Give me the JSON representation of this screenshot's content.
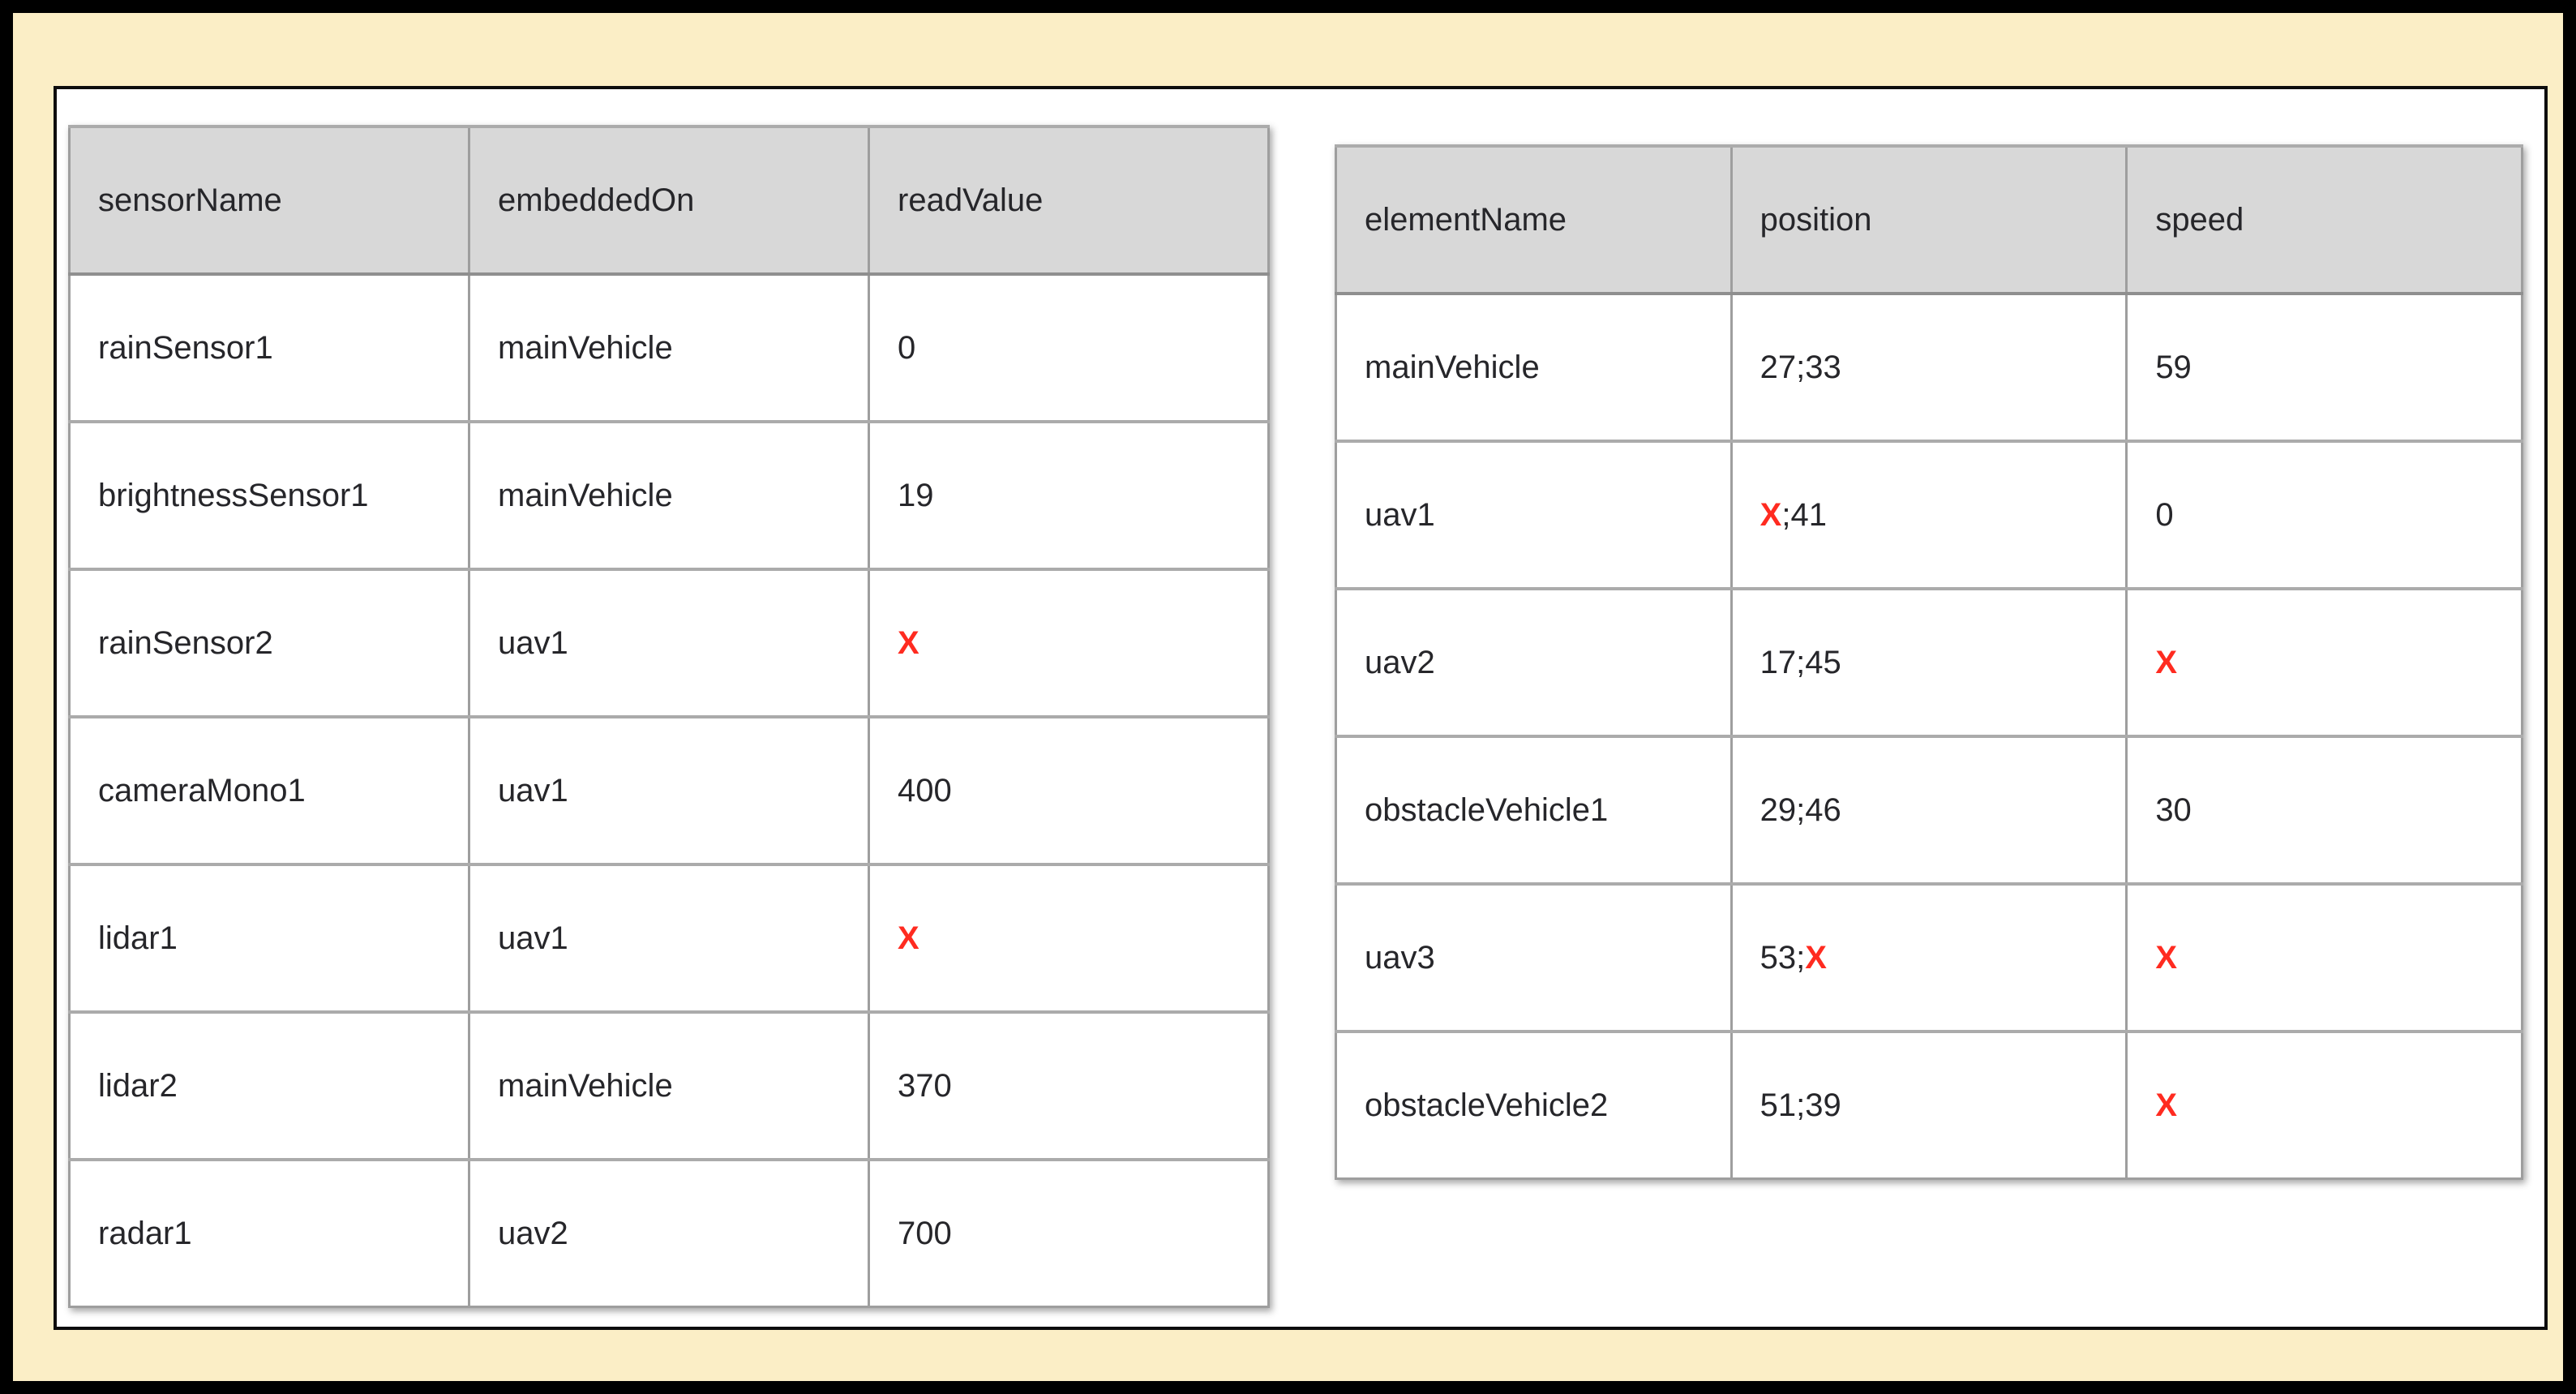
{
  "colors": {
    "page_background": "#FBEEC6",
    "frame_border": "#000000",
    "panel_background": "#FFFFFF",
    "panel_border": "#0D0D0D",
    "header_background": "#D8D8D8",
    "table_border": "#9E9E9E",
    "row_border": "#ABABAB",
    "text": "#26262A",
    "missing_value": "#FF2B20"
  },
  "sensor_table": {
    "columns": [
      "sensorName",
      "embeddedOn",
      "readValue"
    ],
    "rows": [
      [
        [
          {
            "text": "rainSensor1",
            "missing": false
          }
        ],
        [
          {
            "text": "mainVehicle",
            "missing": false
          }
        ],
        [
          {
            "text": "0",
            "missing": false
          }
        ]
      ],
      [
        [
          {
            "text": "brightnessSensor1",
            "missing": false
          }
        ],
        [
          {
            "text": "mainVehicle",
            "missing": false
          }
        ],
        [
          {
            "text": "19",
            "missing": false
          }
        ]
      ],
      [
        [
          {
            "text": "rainSensor2",
            "missing": false
          }
        ],
        [
          {
            "text": "uav1",
            "missing": false
          }
        ],
        [
          {
            "text": "X",
            "missing": true
          }
        ]
      ],
      [
        [
          {
            "text": "cameraMono1",
            "missing": false
          }
        ],
        [
          {
            "text": "uav1",
            "missing": false
          }
        ],
        [
          {
            "text": "400",
            "missing": false
          }
        ]
      ],
      [
        [
          {
            "text": "lidar1",
            "missing": false
          }
        ],
        [
          {
            "text": "uav1",
            "missing": false
          }
        ],
        [
          {
            "text": "X",
            "missing": true
          }
        ]
      ],
      [
        [
          {
            "text": "lidar2",
            "missing": false
          }
        ],
        [
          {
            "text": "mainVehicle",
            "missing": false
          }
        ],
        [
          {
            "text": "370",
            "missing": false
          }
        ]
      ],
      [
        [
          {
            "text": "radar1",
            "missing": false
          }
        ],
        [
          {
            "text": "uav2",
            "missing": false
          }
        ],
        [
          {
            "text": "700",
            "missing": false
          }
        ]
      ]
    ]
  },
  "element_table": {
    "columns": [
      "elementName",
      "position",
      "speed"
    ],
    "rows": [
      [
        [
          {
            "text": "mainVehicle",
            "missing": false
          }
        ],
        [
          {
            "text": "27;33",
            "missing": false
          }
        ],
        [
          {
            "text": "59",
            "missing": false
          }
        ]
      ],
      [
        [
          {
            "text": "uav1",
            "missing": false
          }
        ],
        [
          {
            "text": "X",
            "missing": true
          },
          {
            "text": ";41",
            "missing": false
          }
        ],
        [
          {
            "text": "0",
            "missing": false
          }
        ]
      ],
      [
        [
          {
            "text": "uav2",
            "missing": false
          }
        ],
        [
          {
            "text": "17;45",
            "missing": false
          }
        ],
        [
          {
            "text": "X",
            "missing": true
          }
        ]
      ],
      [
        [
          {
            "text": "obstacleVehicle1",
            "missing": false
          }
        ],
        [
          {
            "text": "29;46",
            "missing": false
          }
        ],
        [
          {
            "text": "30",
            "missing": false
          }
        ]
      ],
      [
        [
          {
            "text": "uav3",
            "missing": false
          }
        ],
        [
          {
            "text": "53;",
            "missing": false
          },
          {
            "text": "X",
            "missing": true
          }
        ],
        [
          {
            "text": "X",
            "missing": true
          }
        ]
      ],
      [
        [
          {
            "text": "obstacleVehicle2",
            "missing": false
          }
        ],
        [
          {
            "text": "51;39",
            "missing": false
          }
        ],
        [
          {
            "text": "X",
            "missing": true
          }
        ]
      ]
    ]
  }
}
